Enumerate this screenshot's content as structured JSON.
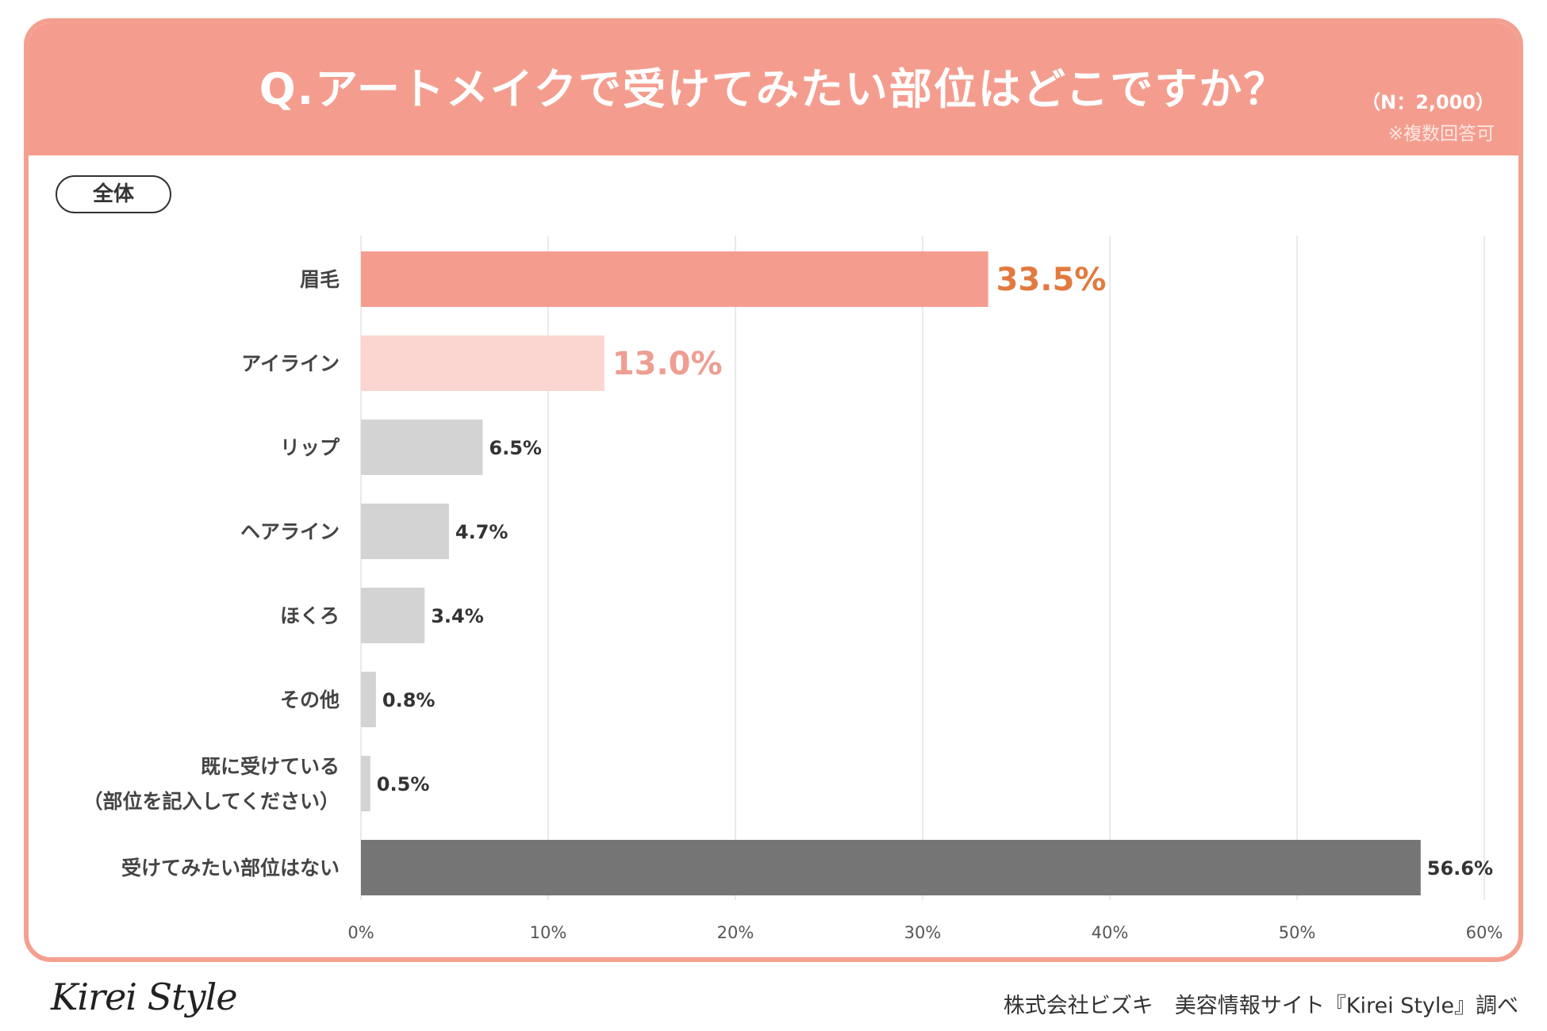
{
  "header": {
    "title": "Q.アートメイクで受けてみたい部位はどこですか？",
    "sample_size": "（N：2,000）",
    "note": "※複数回答可"
  },
  "segment": {
    "label": "全体"
  },
  "chart_data": {
    "type": "bar",
    "orientation": "horizontal",
    "title": "Q.アートメイクで受けてみたい部位はどこですか？",
    "xlabel": "",
    "ylabel": "",
    "xlim": [
      0,
      60
    ],
    "grid": true,
    "tick_values": [
      0,
      10,
      20,
      30,
      40,
      50,
      60
    ],
    "tick_labels": [
      "0%",
      "10%",
      "20%",
      "30%",
      "40%",
      "50%",
      "60%"
    ],
    "categories": [
      [
        "眉毛"
      ],
      [
        "アイライン"
      ],
      [
        "リップ"
      ],
      [
        "ヘアライン"
      ],
      [
        "ほくろ"
      ],
      [
        "その他"
      ],
      [
        "既に受けている",
        "（部位を記入してください）"
      ],
      [
        "受けてみたい部位はない"
      ]
    ],
    "values": [
      33.5,
      13.0,
      6.5,
      4.7,
      3.4,
      0.8,
      0.5,
      56.6
    ],
    "value_labels": [
      "33.5%",
      "13.0%",
      "6.5%",
      "4.7%",
      "3.4%",
      "0.8%",
      "0.5%",
      "56.6%"
    ],
    "bar_colors": [
      "#f49d8f",
      "#fbd5cf",
      "#d3d3d3",
      "#d3d3d3",
      "#d3d3d3",
      "#d3d3d3",
      "#d3d3d3",
      "#757575"
    ],
    "label_colors": [
      "#e27a3f",
      "#ee9e92",
      "#333333",
      "#333333",
      "#333333",
      "#333333",
      "#333333",
      "#333333"
    ],
    "highlight_labels": [
      true,
      true,
      false,
      false,
      false,
      false,
      false,
      false
    ]
  },
  "footer": {
    "logo": "Kirei Style",
    "source": "株式会社ビズキ　美容情報サイト『Kirei Style』調べ"
  }
}
